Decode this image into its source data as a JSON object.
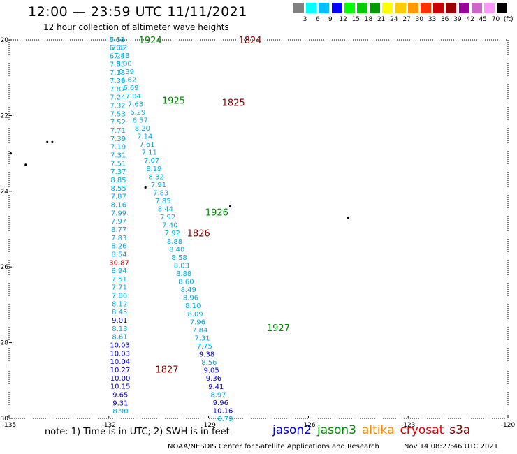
{
  "header": {
    "title": "12:00 — 23:59 UTC 11/11/2021",
    "subtitle": "12 hour collection of altimeter wave heights"
  },
  "color_scale": {
    "colors": [
      "#808080",
      "#00ffff",
      "#00bfff",
      "#0000ff",
      "#00ff00",
      "#00cc00",
      "#009900",
      "#ffff00",
      "#ffcc00",
      "#ff9900",
      "#ff3300",
      "#cc0000",
      "#990000",
      "#990099",
      "#cc66cc",
      "#ff99ff",
      "#000000"
    ],
    "labels": [
      "3",
      "6",
      "9",
      "12",
      "15",
      "18",
      "21",
      "24",
      "27",
      "30",
      "33",
      "36",
      "39",
      "42",
      "45",
      "70",
      "(ft)"
    ]
  },
  "map": {
    "lon_ticks": [
      "-135",
      "-132",
      "-129",
      "-126",
      "-123",
      "-120"
    ],
    "lat_ticks": [
      "-20",
      "-22",
      "-24",
      "-26",
      "-28",
      "-30"
    ],
    "lon_range": [
      -135,
      -120
    ],
    "lat_range": [
      -20,
      -30
    ],
    "islands": [
      {
        "lon": -133.7,
        "lat": -22.7
      },
      {
        "lon": -133.85,
        "lat": -22.7
      },
      {
        "lon": -134.95,
        "lat": -23.0
      },
      {
        "lon": -134.5,
        "lat": -23.3
      },
      {
        "lon": -130.9,
        "lat": -23.9
      },
      {
        "lon": -128.35,
        "lat": -24.4
      },
      {
        "lon": -124.8,
        "lat": -24.7
      }
    ],
    "pass_labels": [
      {
        "text": "1924",
        "lon": -131.1,
        "lat": -20.0,
        "color": "#008800"
      },
      {
        "text": "1824",
        "lon": -128.1,
        "lat": -20.0,
        "color": "#880000"
      },
      {
        "text": "1925",
        "lon": -130.4,
        "lat": -21.6,
        "color": "#008800"
      },
      {
        "text": "1825",
        "lon": -128.6,
        "lat": -21.65,
        "color": "#880000"
      },
      {
        "text": "1926",
        "lon": -129.1,
        "lat": -24.55,
        "color": "#008800"
      },
      {
        "text": "1826",
        "lon": -129.65,
        "lat": -25.1,
        "color": "#880000"
      },
      {
        "text": "1927",
        "lon": -127.25,
        "lat": -27.6,
        "color": "#008800"
      },
      {
        "text": "1827",
        "lon": -130.6,
        "lat": -28.7,
        "color": "#880000"
      }
    ]
  },
  "chart_data": {
    "type": "scatter",
    "title": "12:00 — 23:59 UTC 11/11/2021",
    "xlim": [
      -135,
      -120
    ],
    "ylim": [
      -30,
      -20
    ],
    "tracks": [
      {
        "name": "descending",
        "start": [
          -131.75,
          -19.98
        ],
        "end": [
          -128.5,
          -30.0
        ],
        "values": [
          "7.53",
          "7.52",
          "7.48",
          "8.00",
          "6.39",
          "6.62",
          "6.69",
          "7.04",
          "7.63",
          "6.29",
          "6.57",
          "8.20",
          "7.14",
          "7.61",
          "7.11",
          "7.07",
          "8.19",
          "8.32",
          "7.91",
          "7.83",
          "7.85",
          "8.44",
          "7.92",
          "7.40",
          "7.92",
          "8.88",
          "8.40",
          "8.58",
          "8.03",
          "8.88",
          "8.60",
          "8.49",
          "8.96",
          "8.10",
          "8.09",
          "7.96",
          "7.84",
          "7.31",
          "7.75",
          "9.38",
          "8.56",
          "9.05",
          "9.36",
          "9.41",
          "8.97",
          "9.96",
          "10.16",
          "6.79"
        ],
        "colors": [
          "#00aadd",
          "#00aadd",
          "#00aadd",
          "#00aadd",
          "#00aadd",
          "#00aadd",
          "#00aadd",
          "#00aadd",
          "#00aadd",
          "#00aadd",
          "#00aadd",
          "#00aadd",
          "#00aadd",
          "#00aadd",
          "#00aadd",
          "#00aadd",
          "#00aadd",
          "#00aadd",
          "#00aadd",
          "#00aadd",
          "#00aadd",
          "#00aadd",
          "#00aadd",
          "#00aadd",
          "#00aadd",
          "#00aadd",
          "#00aadd",
          "#00aadd",
          "#00aadd",
          "#00aadd",
          "#00aadd",
          "#00aadd",
          "#00aadd",
          "#00aadd",
          "#00aadd",
          "#00aadd",
          "#00aadd",
          "#00aadd",
          "#00aadd",
          "#0000cc",
          "#00aadd",
          "#0000cc",
          "#0000cc",
          "#0000cc",
          "#00aadd",
          "#0000cc",
          "#0000cc",
          "#00aadd"
        ]
      },
      {
        "name": "ascending",
        "start": [
          -131.75,
          -19.98
        ],
        "end": [
          -131.65,
          -29.8
        ],
        "values": [
          "6.64",
          "6.68",
          "6.25",
          "7.33",
          "7.13",
          "7.38",
          "7.87",
          "7.24",
          "7.32",
          "7.53",
          "7.52",
          "7.71",
          "7.39",
          "7.19",
          "7.31",
          "7.51",
          "7.37",
          "8.85",
          "8.55",
          "7.87",
          "8.16",
          "7.99",
          "7.97",
          "8.77",
          "7.83",
          "8.26",
          "8.54",
          "30.87",
          "8.94",
          "7.51",
          "7.71",
          "7.86",
          "8.12",
          "8.45",
          "9.01",
          "8.13",
          "8.61",
          "10.03",
          "10.03",
          "10.04",
          "10.27",
          "10.00",
          "10.15",
          "9.65",
          "9.31",
          "8.90"
        ],
        "colors": [
          "#00aadd",
          "#00aadd",
          "#00aadd",
          "#00aadd",
          "#00aadd",
          "#00aadd",
          "#00aadd",
          "#00aadd",
          "#00aadd",
          "#00aadd",
          "#00aadd",
          "#00aadd",
          "#00aadd",
          "#00aadd",
          "#00aadd",
          "#00aadd",
          "#00aadd",
          "#00aadd",
          "#00aadd",
          "#00aadd",
          "#00aadd",
          "#00aadd",
          "#00aadd",
          "#00aadd",
          "#00aadd",
          "#00aadd",
          "#00aadd",
          "#dd0000",
          "#00aadd",
          "#00aadd",
          "#00aadd",
          "#00aadd",
          "#00aadd",
          "#00aadd",
          "#0000cc",
          "#00aadd",
          "#00aadd",
          "#0000cc",
          "#0000cc",
          "#0000cc",
          "#0000cc",
          "#0000cc",
          "#0000cc",
          "#0000cc",
          "#0000cc",
          "#00aadd"
        ]
      }
    ]
  },
  "footer": {
    "note": "note: 1) Time is in UTC; 2) SWH is in feet",
    "satellites": [
      {
        "name": "jason2",
        "color": "#0000dd"
      },
      {
        "name": "jason3",
        "color": "#008800"
      },
      {
        "name": "altika",
        "color": "#ff8800"
      },
      {
        "name": "cryosat",
        "color": "#dd0000"
      },
      {
        "name": "s3a",
        "color": "#880000"
      }
    ],
    "credit": "NOAA/NESDIS Center for Satellite Applications and Research",
    "timestamp": "Nov 14 08:27:46 UTC 2021"
  }
}
